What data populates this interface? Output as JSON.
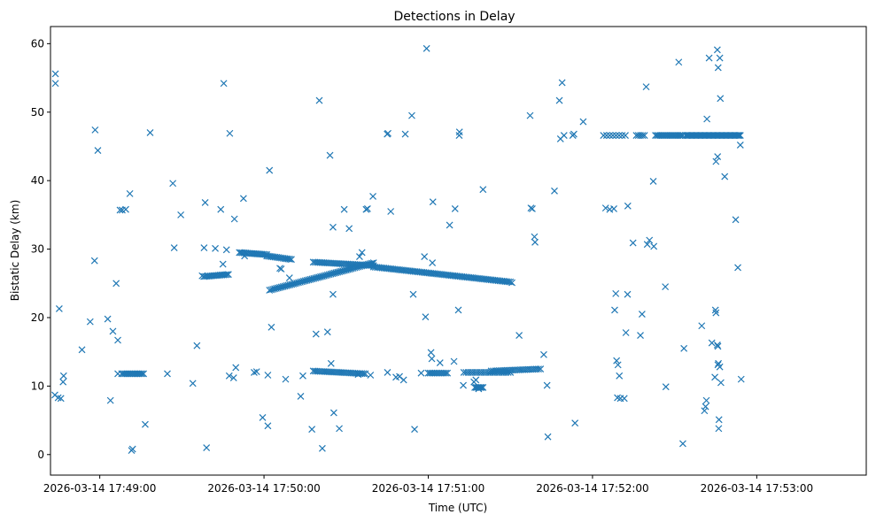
{
  "chart_data": {
    "type": "scatter",
    "title": "Detections in Delay",
    "xlabel": "Time (UTC)",
    "ylabel": "Bistatic Delay (km)",
    "marker": "x",
    "color": "#1f77b4",
    "grid": false,
    "legend": "none",
    "x_unit": "seconds after 2026-03-14 17:48:00",
    "xlim": [
      42,
      340
    ],
    "ylim": [
      -3,
      62.5
    ],
    "x_ticks": [
      {
        "value": 60,
        "label": "2026-03-14 17:49:00"
      },
      {
        "value": 120,
        "label": "2026-03-14 17:50:00"
      },
      {
        "value": 180,
        "label": "2026-03-14 17:51:00"
      },
      {
        "value": 240,
        "label": "2026-03-14 17:52:00"
      },
      {
        "value": 300,
        "label": "2026-03-14 17:53:00"
      }
    ],
    "y_ticks": [
      {
        "value": 0,
        "label": "0"
      },
      {
        "value": 10,
        "label": "10"
      },
      {
        "value": 20,
        "label": "20"
      },
      {
        "value": 30,
        "label": "30"
      },
      {
        "value": 40,
        "label": "40"
      },
      {
        "value": 50,
        "label": "50"
      },
      {
        "value": 60,
        "label": "60"
      }
    ],
    "scattered_points": [
      [
        43.8,
        55.6
      ],
      [
        43.8,
        54.2
      ],
      [
        43.6,
        8.7
      ],
      [
        44.8,
        8.3
      ],
      [
        45.8,
        8.2
      ],
      [
        45.2,
        21.3
      ],
      [
        46.8,
        11.5
      ],
      [
        46.6,
        10.6
      ],
      [
        53.5,
        15.3
      ],
      [
        56.5,
        19.4
      ],
      [
        58.3,
        47.4
      ],
      [
        58.1,
        28.3
      ],
      [
        59.3,
        44.4
      ],
      [
        62.9,
        19.8
      ],
      [
        63.9,
        7.9
      ],
      [
        64.8,
        18.0
      ],
      [
        66.6,
        16.7
      ],
      [
        66.0,
        25.0
      ],
      [
        66.6,
        11.8
      ],
      [
        67.4,
        35.7
      ],
      [
        68.2,
        35.7
      ],
      [
        69.5,
        35.8
      ],
      [
        71.0,
        38.1
      ],
      [
        71.6,
        0.6
      ],
      [
        72.0,
        0.8
      ],
      [
        76.6,
        4.4
      ],
      [
        78.4,
        47.0
      ],
      [
        84.7,
        11.8
      ],
      [
        87.2,
        30.2
      ],
      [
        86.7,
        39.6
      ],
      [
        89.6,
        35.0
      ],
      [
        94.0,
        10.4
      ],
      [
        95.5,
        15.9
      ],
      [
        97.4,
        26.1
      ],
      [
        98.1,
        30.2
      ],
      [
        98.5,
        36.8
      ],
      [
        99.0,
        1.0
      ],
      [
        102.2,
        30.1
      ],
      [
        104.2,
        35.8
      ],
      [
        105.0,
        27.8
      ],
      [
        105.3,
        54.2
      ],
      [
        106.3,
        29.9
      ],
      [
        107.3,
        11.5
      ],
      [
        107.5,
        46.9
      ],
      [
        108.9,
        11.2
      ],
      [
        109.2,
        34.4
      ],
      [
        109.7,
        12.7
      ],
      [
        112.9,
        29.0
      ],
      [
        112.5,
        37.4
      ],
      [
        116.4,
        12.0
      ],
      [
        117.3,
        12.1
      ],
      [
        119.5,
        5.4
      ],
      [
        121.4,
        4.2
      ],
      [
        121.4,
        11.6
      ],
      [
        122.0,
        41.5
      ],
      [
        122.7,
        18.6
      ],
      [
        125.8,
        27.2
      ],
      [
        126.3,
        27.1
      ],
      [
        127.9,
        11.0
      ],
      [
        129.3,
        25.8
      ],
      [
        133.4,
        8.5
      ],
      [
        134.2,
        11.5
      ],
      [
        137.5,
        3.7
      ],
      [
        139.0,
        17.6
      ],
      [
        140.2,
        51.7
      ],
      [
        141.3,
        0.9
      ],
      [
        143.2,
        17.9
      ],
      [
        144.1,
        43.7
      ],
      [
        144.5,
        13.3
      ],
      [
        145.2,
        23.4
      ],
      [
        145.5,
        6.1
      ],
      [
        145.2,
        33.2
      ],
      [
        147.5,
        3.8
      ],
      [
        149.3,
        35.8
      ],
      [
        151.1,
        33.0
      ],
      [
        154.4,
        11.7
      ],
      [
        154.9,
        28.9
      ],
      [
        155.8,
        29.5
      ],
      [
        157.3,
        35.8
      ],
      [
        157.8,
        35.9
      ],
      [
        158.9,
        11.6
      ],
      [
        159.8,
        37.7
      ],
      [
        165.0,
        46.8
      ],
      [
        165.3,
        46.9
      ],
      [
        165.1,
        12.0
      ],
      [
        166.3,
        35.5
      ],
      [
        168.2,
        11.3
      ],
      [
        169.5,
        11.4
      ],
      [
        171.0,
        10.9
      ],
      [
        171.6,
        46.8
      ],
      [
        174.0,
        49.5
      ],
      [
        174.5,
        23.4
      ],
      [
        175.0,
        3.7
      ],
      [
        177.4,
        11.9
      ],
      [
        178.6,
        28.9
      ],
      [
        179.0,
        20.1
      ],
      [
        179.4,
        59.3
      ],
      [
        181.0,
        14.9
      ],
      [
        181.3,
        14.0
      ],
      [
        181.7,
        36.9
      ],
      [
        181.5,
        28.0
      ],
      [
        184.3,
        13.4
      ],
      [
        187.8,
        33.5
      ],
      [
        189.4,
        13.6
      ],
      [
        189.8,
        35.9
      ],
      [
        191.0,
        21.1
      ],
      [
        191.4,
        47.1
      ],
      [
        191.3,
        46.6
      ],
      [
        192.8,
        10.1
      ],
      [
        196.7,
        10.6
      ],
      [
        197.4,
        10.9
      ],
      [
        198.4,
        9.6
      ],
      [
        200.0,
        38.7
      ],
      [
        210.6,
        25.1
      ],
      [
        213.2,
        17.4
      ],
      [
        217.2,
        49.5
      ],
      [
        217.5,
        36.0
      ],
      [
        218.0,
        35.9
      ],
      [
        218.8,
        31.8
      ],
      [
        219.0,
        31.0
      ],
      [
        222.2,
        14.6
      ],
      [
        223.4,
        10.1
      ],
      [
        223.7,
        2.6
      ],
      [
        226.1,
        38.5
      ],
      [
        227.9,
        51.7
      ],
      [
        228.3,
        46.1
      ],
      [
        228.9,
        54.3
      ],
      [
        229.6,
        46.6
      ],
      [
        232.8,
        46.6
      ],
      [
        233.2,
        46.8
      ],
      [
        233.6,
        4.6
      ],
      [
        236.6,
        48.6
      ],
      [
        244.8,
        36.0
      ],
      [
        246.3,
        35.8
      ],
      [
        247.8,
        35.9
      ],
      [
        248.5,
        23.5
      ],
      [
        248.1,
        21.1
      ],
      [
        248.8,
        13.7
      ],
      [
        249.3,
        13.1
      ],
      [
        249.8,
        11.5
      ],
      [
        249.1,
        8.3
      ],
      [
        250.2,
        8.2
      ],
      [
        251.6,
        8.2
      ],
      [
        252.2,
        17.8
      ],
      [
        252.9,
        36.3
      ],
      [
        252.8,
        23.4
      ],
      [
        254.8,
        30.9
      ],
      [
        257.5,
        17.4
      ],
      [
        258.1,
        20.5
      ],
      [
        259.6,
        53.7
      ],
      [
        260.0,
        30.7
      ],
      [
        260.8,
        31.3
      ],
      [
        262.4,
        30.4
      ],
      [
        262.2,
        39.9
      ],
      [
        266.6,
        24.5
      ],
      [
        266.8,
        9.9
      ],
      [
        271.5,
        57.3
      ],
      [
        273.0,
        1.6
      ],
      [
        273.4,
        15.5
      ],
      [
        279.9,
        18.8
      ],
      [
        280.9,
        6.4
      ],
      [
        281.3,
        7.0
      ],
      [
        281.6,
        7.9
      ],
      [
        281.8,
        49.0
      ],
      [
        282.6,
        57.9
      ],
      [
        283.6,
        16.3
      ],
      [
        284.7,
        11.3
      ],
      [
        285.1,
        42.8
      ],
      [
        284.9,
        21.1
      ],
      [
        285.1,
        20.7
      ],
      [
        285.7,
        43.5
      ],
      [
        285.6,
        16.0
      ],
      [
        285.8,
        15.8
      ],
      [
        286.0,
        13.3
      ],
      [
        285.8,
        13.1
      ],
      [
        285.6,
        59.1
      ],
      [
        285.9,
        56.5
      ],
      [
        286.5,
        57.9
      ],
      [
        286.7,
        52.0
      ],
      [
        286.5,
        12.8
      ],
      [
        286.9,
        10.5
      ],
      [
        286.2,
        5.1
      ],
      [
        286.1,
        3.8
      ],
      [
        288.3,
        40.6
      ],
      [
        292.3,
        34.3
      ],
      [
        293.1,
        27.3
      ],
      [
        294.0,
        45.2
      ],
      [
        294.3,
        11.0
      ]
    ],
    "dense_runs": [
      {
        "x": [
          68,
          76
        ],
        "y": [
          11.8,
          11.8
        ],
        "n": 14
      },
      {
        "x": [
          98,
          107
        ],
        "y": [
          26.0,
          26.3
        ],
        "n": 16
      },
      {
        "x": [
          111,
          121
        ],
        "y": [
          29.5,
          29.2
        ],
        "n": 18
      },
      {
        "x": [
          121,
          130
        ],
        "y": [
          29.0,
          28.5
        ],
        "n": 16
      },
      {
        "x": [
          122,
          160
        ],
        "y": [
          24.0,
          28.0
        ],
        "n": 62
      },
      {
        "x": [
          138,
          160
        ],
        "y": [
          28.1,
          27.6
        ],
        "n": 36
      },
      {
        "x": [
          160,
          210
        ],
        "y": [
          27.4,
          25.2
        ],
        "n": 80
      },
      {
        "x": [
          138,
          157
        ],
        "y": [
          12.2,
          11.8
        ],
        "n": 30
      },
      {
        "x": [
          180,
          187
        ],
        "y": [
          11.9,
          11.9
        ],
        "n": 12
      },
      {
        "x": [
          193,
          210
        ],
        "y": [
          12.0,
          12.0
        ],
        "n": 22
      },
      {
        "x": [
          197,
          200
        ],
        "y": [
          9.8,
          9.8
        ],
        "n": 7
      },
      {
        "x": [
          203,
          221
        ],
        "y": [
          12.2,
          12.5
        ],
        "n": 26
      },
      {
        "x": [
          244,
          252
        ],
        "y": [
          46.6,
          46.6
        ],
        "n": 8
      },
      {
        "x": [
          256,
          259
        ],
        "y": [
          46.6,
          46.6
        ],
        "n": 5
      },
      {
        "x": [
          263,
          273
        ],
        "y": [
          46.6,
          46.6
        ],
        "n": 18
      },
      {
        "x": [
          274,
          294
        ],
        "y": [
          46.6,
          46.6
        ],
        "n": 50
      }
    ]
  }
}
